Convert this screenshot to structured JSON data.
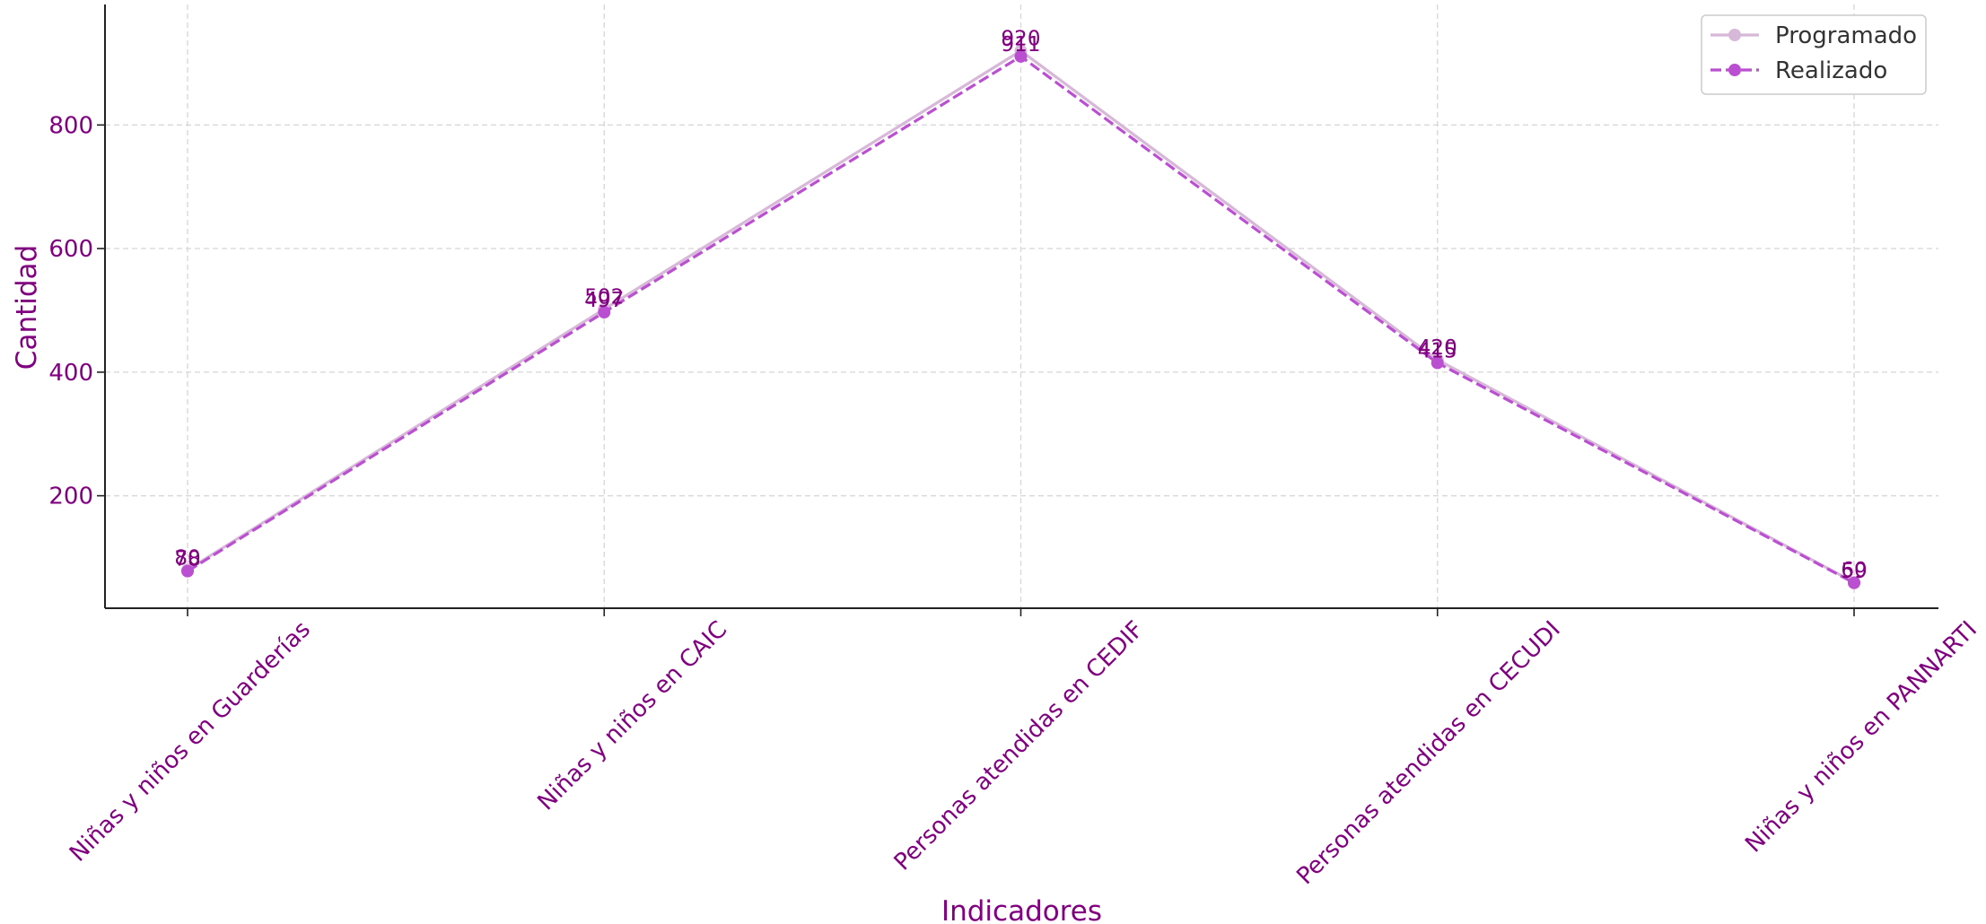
{
  "chart_data": {
    "type": "line",
    "title": "",
    "xlabel": "Indicadores",
    "ylabel": "Cantidad",
    "categories": [
      "Niñas y niños en Guarderías",
      "Niñas y niños en CAIC",
      "Personas atendidas en CEDIF",
      "Personas atendidas en CECUDI",
      "Niñas y niños en PANNARTI"
    ],
    "series": [
      {
        "name": "Programado",
        "values": [
          80,
          502,
          920,
          420,
          60
        ],
        "color": "#d7b8d9",
        "style": "solid"
      },
      {
        "name": "Realizado",
        "values": [
          78,
          497,
          911,
          415,
          59
        ],
        "color": "#bb4fd1",
        "style": "dashed"
      }
    ],
    "ylim": [
      18,
      995
    ],
    "yticks": [
      200,
      400,
      600,
      800
    ],
    "grid": true,
    "legend_position": "top-right",
    "text_color": "#800080"
  }
}
